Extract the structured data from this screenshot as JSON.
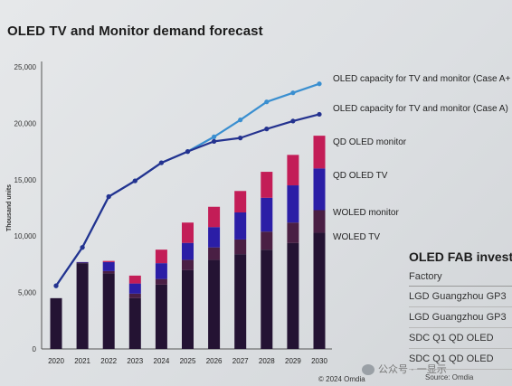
{
  "chart_data": {
    "type": "bar",
    "title": "OLED TV and Monitor demand forecast",
    "ylabel": "Thousand units",
    "ylim": [
      0,
      25000
    ],
    "yticks": [
      "0",
      "5,000",
      "10,000",
      "15,000",
      "20,000",
      "25,000"
    ],
    "categories": [
      "2020",
      "2021",
      "2022",
      "2023",
      "2024",
      "2025",
      "2026",
      "2027",
      "2028",
      "2029",
      "2030"
    ],
    "stacked": true,
    "series": [
      {
        "name": "WOLED TV",
        "color": "#241333",
        "values": [
          4500,
          7600,
          6700,
          4500,
          5700,
          7000,
          7900,
          8400,
          8800,
          9400,
          10300
        ]
      },
      {
        "name": "WOLED monitor",
        "color": "#4a1f44",
        "values": [
          0,
          50,
          200,
          400,
          500,
          900,
          1100,
          1300,
          1600,
          1800,
          2000
        ]
      },
      {
        "name": "QD OLED TV",
        "color": "#2b1ea6",
        "values": [
          0,
          50,
          800,
          900,
          1400,
          1500,
          1800,
          2400,
          3000,
          3300,
          3700
        ]
      },
      {
        "name": "QD OLED monitor",
        "color": "#c31d57",
        "values": [
          0,
          0,
          100,
          700,
          1200,
          1800,
          1800,
          1900,
          2300,
          2700,
          2900
        ]
      }
    ],
    "lines": [
      {
        "name": "OLED capacity for TV and monitor (Case A+",
        "color": "#3a8fd0",
        "values": [
          5600,
          9000,
          13500,
          14900,
          16500,
          17500,
          18800,
          20300,
          21900,
          22700,
          23500
        ]
      },
      {
        "name": "OLED capacity for TV and monitor (Case A)",
        "color": "#24328f",
        "values": [
          5600,
          9000,
          13500,
          14900,
          16500,
          17500,
          18400,
          18700,
          19500,
          20200,
          20800
        ]
      }
    ],
    "legend_position": "right",
    "grid": false
  },
  "side_panel": {
    "title": "OLED FAB investm",
    "header": "Factory",
    "rows": [
      "LGD Guangzhou GP3",
      "LGD Guangzhou GP3",
      "SDC Q1 QD OLED",
      "SDC Q1 QD OLED"
    ]
  },
  "source": "© 2024 Omdia",
  "source2": "Source: Omdia",
  "watermark": "公众号 · 一显示"
}
